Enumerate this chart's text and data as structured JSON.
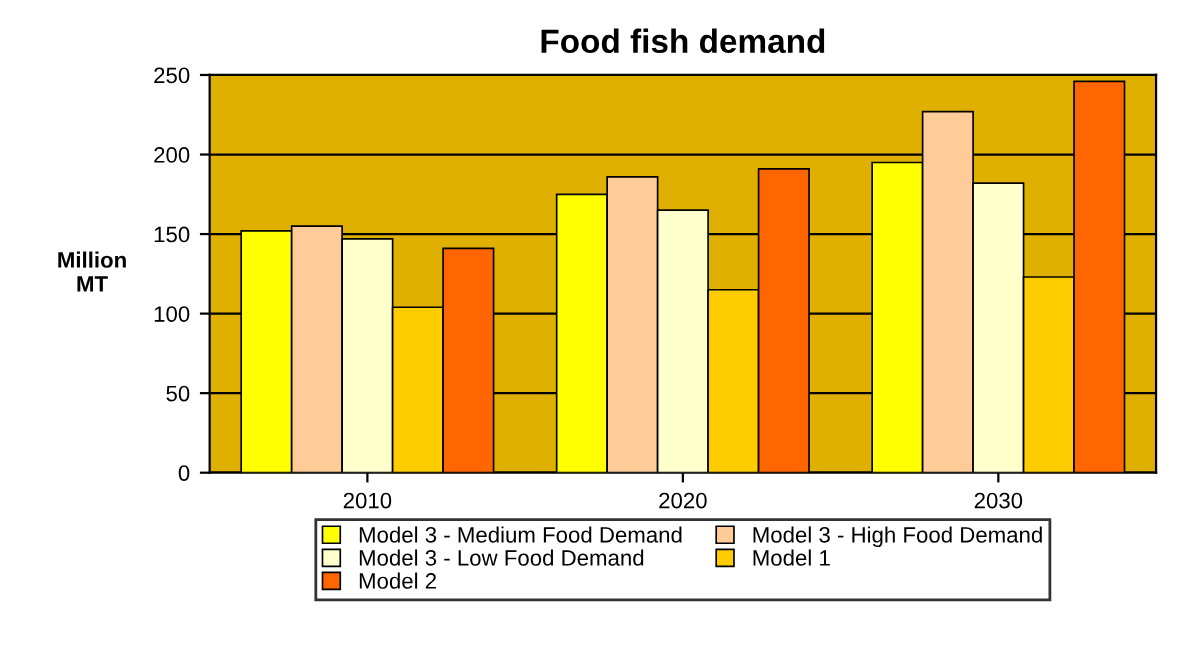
{
  "chart_data": {
    "type": "bar",
    "title": "Food fish demand",
    "ylabel": "Million\nMT",
    "categories": [
      "2010",
      "2020",
      "2030"
    ],
    "series": [
      {
        "name": "Model 3 - Medium Food Demand",
        "color": "#ffff00",
        "values": [
          152,
          175,
          195
        ]
      },
      {
        "name": "Model 3 - High Food Demand",
        "color": "#ffcc99",
        "values": [
          155,
          186,
          227
        ]
      },
      {
        "name": "Model 3 - Low Food Demand",
        "color": "#ffffcc",
        "values": [
          147,
          165,
          182
        ]
      },
      {
        "name": "Model 1",
        "color": "#ffcc00",
        "values": [
          104,
          115,
          123
        ]
      },
      {
        "name": "Model 2",
        "color": "#ff6600",
        "values": [
          141,
          191,
          246
        ]
      }
    ],
    "ylim": [
      0,
      250
    ],
    "yticks": [
      0,
      50,
      100,
      150,
      200,
      250
    ],
    "grid": "y",
    "legend": "bottom"
  }
}
